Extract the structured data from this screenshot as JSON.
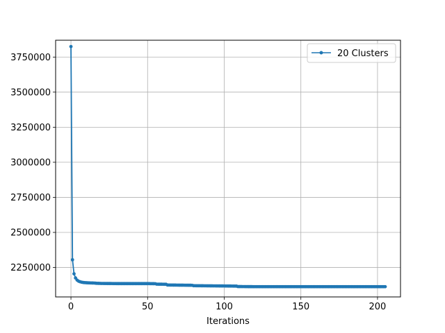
{
  "chart_data": {
    "type": "line",
    "title": "",
    "xlabel": "Iterations",
    "ylabel": "",
    "xlim": [
      -10,
      215
    ],
    "ylim": [
      2040000,
      3870000
    ],
    "xticks": [
      0,
      50,
      100,
      150,
      200
    ],
    "yticks": [
      2250000,
      2500000,
      2750000,
      3000000,
      3250000,
      3500000,
      3750000
    ],
    "xtick_labels": [
      "0",
      "50",
      "100",
      "150",
      "200"
    ],
    "ytick_labels": [
      "2250000",
      "2500000",
      "2750000",
      "3000000",
      "3250000",
      "3500000",
      "3750000"
    ],
    "grid": true,
    "legend_position": "top-right",
    "series": [
      {
        "name": "20 Clusters",
        "color": "#1f77b4",
        "marker": "dot",
        "points": [
          [
            0,
            3825000
          ],
          [
            1,
            2305000
          ],
          [
            2,
            2205000
          ],
          [
            3,
            2175000
          ],
          [
            4,
            2160000
          ],
          [
            5,
            2152000
          ],
          [
            6,
            2148000
          ],
          [
            7,
            2145000
          ],
          [
            8,
            2143000
          ],
          [
            10,
            2141000
          ],
          [
            12,
            2140000
          ],
          [
            15,
            2139000
          ],
          [
            17,
            2137000
          ],
          [
            20,
            2136000
          ],
          [
            30,
            2135000
          ],
          [
            40,
            2135000
          ],
          [
            50,
            2135000
          ],
          [
            55,
            2134000
          ],
          [
            56,
            2131000
          ],
          [
            62,
            2130000
          ],
          [
            63,
            2125000
          ],
          [
            70,
            2124000
          ],
          [
            79,
            2123000
          ],
          [
            80,
            2120000
          ],
          [
            90,
            2119000
          ],
          [
            100,
            2118000
          ],
          [
            108,
            2117000
          ],
          [
            109,
            2114000
          ],
          [
            120,
            2113000
          ],
          [
            140,
            2113000
          ],
          [
            160,
            2113000
          ],
          [
            180,
            2113000
          ],
          [
            195,
            2113000
          ],
          [
            205,
            2113000
          ]
        ]
      }
    ]
  }
}
